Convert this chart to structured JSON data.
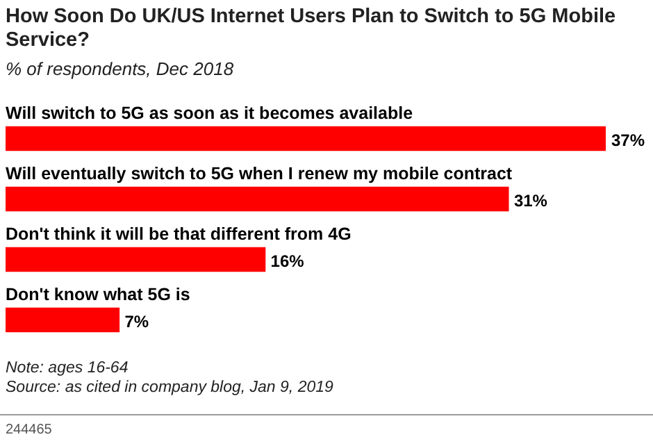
{
  "chart_data": {
    "type": "bar",
    "orientation": "horizontal",
    "title": "How Soon Do UK/US Internet Users Plan to Switch to 5G Mobile Service?",
    "subtitle": "% of respondents, Dec 2018",
    "categories": [
      "Will switch to 5G as soon as it becomes available",
      "Will eventually switch to 5G when I renew my mobile contract",
      "Don't think it will be that different from 4G",
      "Don't know what 5G is"
    ],
    "values": [
      37,
      31,
      16,
      7
    ],
    "value_labels": [
      "37%",
      "31%",
      "16%",
      "7%"
    ],
    "color": "#ff0000",
    "annotations": [
      "Note: ages 16-64",
      "Source: as cited in company blog, Jan 9, 2019",
      "244465"
    ]
  }
}
